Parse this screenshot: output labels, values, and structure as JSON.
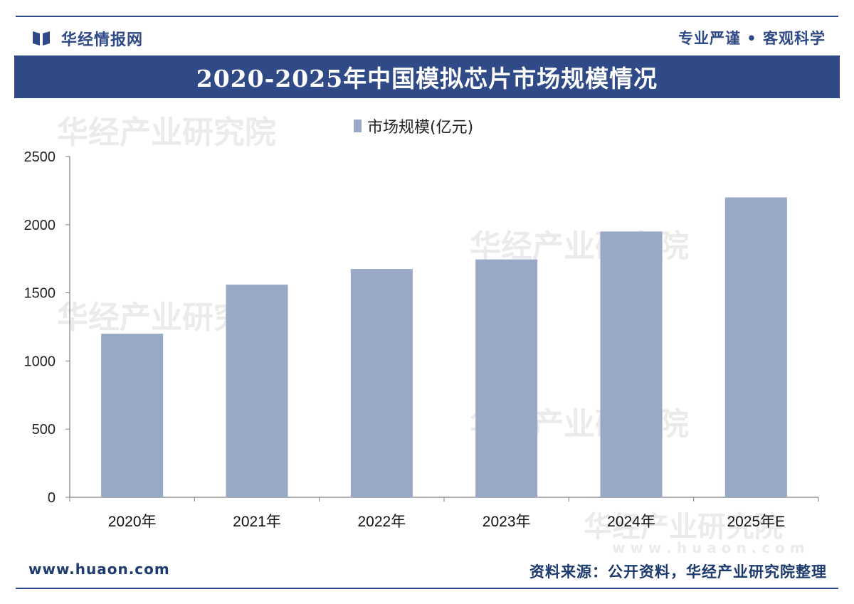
{
  "header": {
    "brand": "华经情报网",
    "slogan": "专业严谨 • 客观科学"
  },
  "title": "2020-2025年中国模拟芯片市场规模情况",
  "watermark": {
    "text": "华经产业研究院",
    "url": "w w w . h u a o n . c o m"
  },
  "chart_data": {
    "type": "bar",
    "categories": [
      "2020年",
      "2021年",
      "2022年",
      "2023年",
      "2024年",
      "2025年E"
    ],
    "series": [
      {
        "name": "市场规模(亿元)",
        "values": [
          1200,
          1560,
          1675,
          1745,
          1950,
          2200
        ]
      }
    ],
    "ylim": [
      0,
      2500
    ],
    "yticks": [
      0,
      500,
      1000,
      1500,
      2000,
      2500
    ],
    "legend_position": "top-center",
    "grid": false,
    "bar_color": "#9aa8c7"
  },
  "footer": {
    "website": "www.huaon.com",
    "source": "资料来源：公开资料，华经产业研究院整理"
  },
  "colors": {
    "brand": "#2f4a86",
    "bar": "#9aa8c7"
  }
}
